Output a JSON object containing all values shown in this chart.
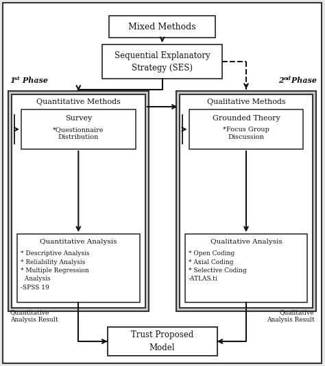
{
  "bg_color": "#ffffff",
  "box_color": "#ffffff",
  "box_edge": "#333333",
  "gray_bg": "#c8c8c8",
  "outer_bg": "#e8e8e8",
  "title": "Mixed Methods",
  "ses_box": "Sequential Explanatory\nStrategy (SES)",
  "quant_header": "Quantitative Methods",
  "qual_header": "Qualitative Methods",
  "survey_title": "Survey",
  "survey_body": "*Questionnaire\nDistribution",
  "grounded_title": "Grounded Theory",
  "grounded_body": "*Focus Group\nDiscussion",
  "quant_analysis_title": "Quantitative Analysis",
  "quant_analysis_body": "* Descriptive Analysis\n* Reliability Analysis\n* Multiple Regression\n  Analysis\n-SPSS 19",
  "qual_analysis_title": "Qualitative Analysis",
  "qual_analysis_body": "* Open Coding\n* Axial Coding\n* Selective Coding\n-ATLAS.ti",
  "phase1_label": "1",
  "phase1_sup": "st",
  "phase1_rest": " Phase",
  "phase2_label": "2",
  "phase2_sup": "nd",
  "phase2_rest": " Phase",
  "quant_result": "Quantitative\nAnalysis Result",
  "qual_result": "Qualitative\nAnalysis Result",
  "trust_model": "Trust Proposed\nModel"
}
